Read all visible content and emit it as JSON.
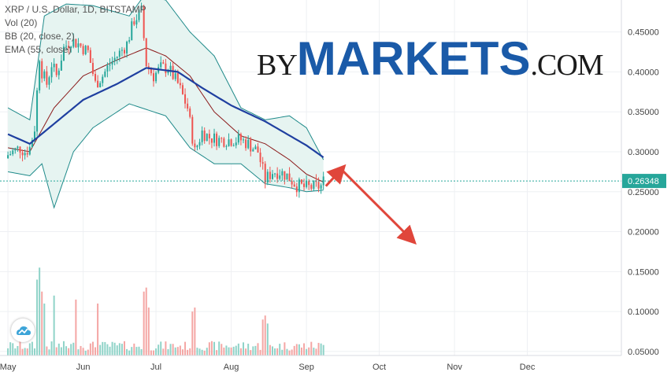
{
  "legend": {
    "symbol": "XRP / U.S. Dollar, 1D, BITSTAMP",
    "vol": "Vol (20)",
    "bb": "BB (20, close, 2)",
    "ema": "EMA (55, close)"
  },
  "watermark": {
    "by": "BY",
    "markets": "MARKETS",
    "com": ".COM"
  },
  "colors": {
    "up": "#26a69a",
    "down": "#ef5350",
    "vol_up": "#8fd3c8",
    "vol_down": "#f4a6a4",
    "ema": "#1f3fa0",
    "bb_band": "#1f8a8a",
    "bb_basis": "#8b1a1a",
    "bb_fill": "#e6f4f1",
    "price_line": "#26a69a",
    "arrow": "#e0463b",
    "watermark_blue": "#1a5aa8"
  },
  "chart_data": {
    "type": "candlestick",
    "symbol": "XRP / U.S. Dollar",
    "interval": "1D",
    "exchange": "BITSTAMP",
    "start_date": "2019-05-01",
    "x_range": [
      "2019-04-30",
      "2019-12-31"
    ],
    "x_tick_labels": [
      "May",
      "Jun",
      "Jul",
      "Aug",
      "Sep",
      "Oct",
      "Nov",
      "Dec"
    ],
    "y_range": [
      0.045,
      0.49
    ],
    "y_ticks": [
      0.05,
      0.1,
      0.15,
      0.2,
      0.25,
      0.3,
      0.35,
      0.4,
      0.45
    ],
    "y_tick_labels": [
      "0.05000",
      "0.10000",
      "0.15000",
      "0.20000",
      "0.25000",
      "0.30000",
      "0.35000",
      "0.40000",
      "0.45000"
    ],
    "last_price": 0.26348,
    "last_price_label": "0.26348",
    "close_anchors": [
      [
        "2019-05-01",
        0.296
      ],
      [
        "2019-05-03",
        0.3
      ],
      [
        "2019-05-06",
        0.305
      ],
      [
        "2019-05-08",
        0.3
      ],
      [
        "2019-05-10",
        0.305
      ],
      [
        "2019-05-12",
        0.33
      ],
      [
        "2019-05-13",
        0.375
      ],
      [
        "2019-05-14",
        0.42
      ],
      [
        "2019-05-15",
        0.4
      ],
      [
        "2019-05-17",
        0.385
      ],
      [
        "2019-05-19",
        0.41
      ],
      [
        "2019-05-21",
        0.395
      ],
      [
        "2019-05-24",
        0.43
      ],
      [
        "2019-05-27",
        0.44
      ],
      [
        "2019-05-30",
        0.435
      ],
      [
        "2019-06-03",
        0.425
      ],
      [
        "2019-06-06",
        0.385
      ],
      [
        "2019-06-09",
        0.395
      ],
      [
        "2019-06-12",
        0.41
      ],
      [
        "2019-06-15",
        0.42
      ],
      [
        "2019-06-19",
        0.435
      ],
      [
        "2019-06-22",
        0.465
      ],
      [
        "2019-06-25",
        0.475
      ],
      [
        "2019-06-27",
        0.41
      ],
      [
        "2019-06-30",
        0.395
      ],
      [
        "2019-07-03",
        0.405
      ],
      [
        "2019-07-06",
        0.405
      ],
      [
        "2019-07-10",
        0.385
      ],
      [
        "2019-07-14",
        0.355
      ],
      [
        "2019-07-17",
        0.3
      ],
      [
        "2019-07-20",
        0.325
      ],
      [
        "2019-07-23",
        0.318
      ],
      [
        "2019-07-27",
        0.315
      ],
      [
        "2019-08-01",
        0.315
      ],
      [
        "2019-08-05",
        0.315
      ],
      [
        "2019-08-08",
        0.31
      ],
      [
        "2019-08-12",
        0.3
      ],
      [
        "2019-08-15",
        0.265
      ],
      [
        "2019-08-18",
        0.275
      ],
      [
        "2019-08-21",
        0.275
      ],
      [
        "2019-08-24",
        0.27
      ],
      [
        "2019-08-28",
        0.258
      ],
      [
        "2019-09-01",
        0.255
      ],
      [
        "2019-09-04",
        0.256
      ],
      [
        "2019-09-07",
        0.257
      ],
      [
        "2019-09-08",
        0.263
      ]
    ],
    "ema55": {
      "name": "EMA (55, close)",
      "anchors": [
        [
          "2019-05-01",
          0.322
        ],
        [
          "2019-05-10",
          0.31
        ],
        [
          "2019-05-20",
          0.335
        ],
        [
          "2019-06-01",
          0.365
        ],
        [
          "2019-06-15",
          0.385
        ],
        [
          "2019-06-27",
          0.405
        ],
        [
          "2019-07-10",
          0.4
        ],
        [
          "2019-07-20",
          0.38
        ],
        [
          "2019-08-01",
          0.358
        ],
        [
          "2019-08-15",
          0.338
        ],
        [
          "2019-09-01",
          0.308
        ],
        [
          "2019-09-08",
          0.293
        ]
      ]
    },
    "bollinger": {
      "name": "BB (20, close, 2)",
      "upper": [
        [
          "2019-05-01",
          0.355
        ],
        [
          "2019-05-10",
          0.34
        ],
        [
          "2019-05-16",
          0.47
        ],
        [
          "2019-05-25",
          0.485
        ],
        [
          "2019-06-05",
          0.483
        ],
        [
          "2019-06-20",
          0.47
        ],
        [
          "2019-06-26",
          0.495
        ],
        [
          "2019-07-05",
          0.49
        ],
        [
          "2019-07-15",
          0.45
        ],
        [
          "2019-07-25",
          0.42
        ],
        [
          "2019-08-05",
          0.355
        ],
        [
          "2019-08-15",
          0.34
        ],
        [
          "2019-08-25",
          0.345
        ],
        [
          "2019-09-01",
          0.33
        ],
        [
          "2019-09-08",
          0.29
        ]
      ],
      "basis": [
        [
          "2019-05-01",
          0.305
        ],
        [
          "2019-05-10",
          0.3
        ],
        [
          "2019-05-20",
          0.355
        ],
        [
          "2019-06-01",
          0.395
        ],
        [
          "2019-06-15",
          0.415
        ],
        [
          "2019-06-27",
          0.43
        ],
        [
          "2019-07-05",
          0.42
        ],
        [
          "2019-07-15",
          0.395
        ],
        [
          "2019-07-25",
          0.35
        ],
        [
          "2019-08-05",
          0.32
        ],
        [
          "2019-08-15",
          0.31
        ],
        [
          "2019-08-25",
          0.29
        ],
        [
          "2019-09-01",
          0.272
        ],
        [
          "2019-09-08",
          0.262
        ]
      ],
      "lower": [
        [
          "2019-05-01",
          0.275
        ],
        [
          "2019-05-10",
          0.27
        ],
        [
          "2019-05-15",
          0.285
        ],
        [
          "2019-05-20",
          0.23
        ],
        [
          "2019-05-28",
          0.3
        ],
        [
          "2019-06-05",
          0.33
        ],
        [
          "2019-06-20",
          0.36
        ],
        [
          "2019-07-05",
          0.345
        ],
        [
          "2019-07-15",
          0.305
        ],
        [
          "2019-07-25",
          0.285
        ],
        [
          "2019-08-05",
          0.285
        ],
        [
          "2019-08-15",
          0.26
        ],
        [
          "2019-08-25",
          0.255
        ],
        [
          "2019-09-01",
          0.25
        ],
        [
          "2019-09-08",
          0.252
        ]
      ]
    },
    "volume_spikes": [
      [
        "2019-05-13",
        0.095
      ],
      [
        "2019-05-14",
        0.11
      ],
      [
        "2019-05-15",
        0.08
      ],
      [
        "2019-05-16",
        0.065
      ],
      [
        "2019-05-20",
        0.075
      ],
      [
        "2019-05-29",
        0.07
      ],
      [
        "2019-06-07",
        0.065
      ],
      [
        "2019-06-26",
        0.08
      ],
      [
        "2019-06-27",
        0.085
      ],
      [
        "2019-06-28",
        0.06
      ],
      [
        "2019-07-16",
        0.055
      ],
      [
        "2019-07-17",
        0.06
      ],
      [
        "2019-08-14",
        0.045
      ],
      [
        "2019-08-15",
        0.05
      ],
      [
        "2019-08-16",
        0.04
      ]
    ],
    "forecast_arrows": [
      {
        "from": [
          "2019-09-09",
          0.257
        ],
        "to": [
          "2019-09-16",
          0.28
        ]
      },
      {
        "from": [
          "2019-09-16",
          0.276
        ],
        "to": [
          "2019-10-15",
          0.188
        ]
      }
    ]
  }
}
